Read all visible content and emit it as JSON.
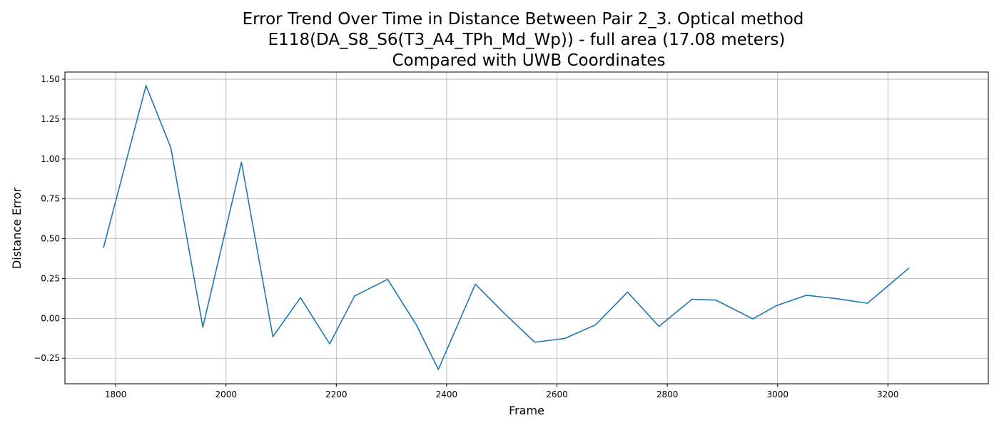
{
  "chart_data": {
    "type": "line",
    "title_lines": [
      "Error Trend Over Time in Distance Between Pair 2_3. Optical method",
      "E118(DA_S8_S6(T3_A4_TPh_Md_Wp)) - full area (17.08 meters)",
      "Compared with UWB Coordinates"
    ],
    "xlabel": "Frame",
    "ylabel": "Distance Error",
    "xlim": [
      1708,
      3382
    ],
    "ylim": [
      -0.41,
      1.545
    ],
    "xticks": [
      1800,
      2000,
      2200,
      2400,
      2600,
      2800,
      3000,
      3200
    ],
    "xtick_labels": [
      "1800",
      "2000",
      "2200",
      "2400",
      "2600",
      "2800",
      "3000",
      "3200"
    ],
    "yticks": [
      -0.25,
      0,
      0.25,
      0.5,
      0.75,
      1.0,
      1.25,
      1.5
    ],
    "ytick_labels": [
      "−0.25",
      "0.00",
      "0.25",
      "0.50",
      "0.75",
      "1.00",
      "1.25",
      "1.50"
    ],
    "grid": true,
    "line_color": "#1f77b4",
    "series": [
      {
        "x": [
          1778,
          1855,
          1900,
          1958,
          2028,
          2085,
          2135,
          2188,
          2233,
          2293,
          2345,
          2385,
          2452,
          2505,
          2560,
          2615,
          2670,
          2728,
          2785,
          2845,
          2888,
          2955,
          2998,
          3052,
          3105,
          3163,
          3238
        ],
        "y": [
          0.445,
          1.46,
          1.07,
          -0.055,
          0.98,
          -0.115,
          0.13,
          -0.16,
          0.14,
          0.245,
          -0.04,
          -0.32,
          0.215,
          0.03,
          -0.15,
          -0.125,
          -0.04,
          0.165,
          -0.05,
          0.12,
          0.115,
          -0.003,
          0.08,
          0.145,
          0.125,
          0.095,
          0.315
        ]
      }
    ]
  }
}
